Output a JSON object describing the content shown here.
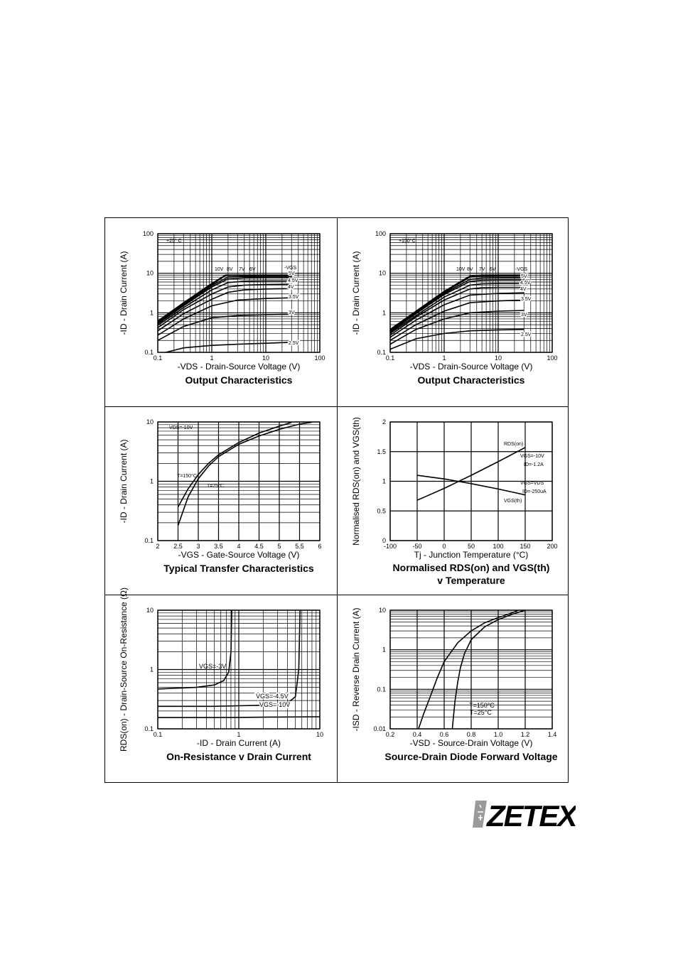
{
  "charts": [
    {
      "type": "line",
      "title": "Output Characteristics",
      "xlabel": "-VDS - Drain-Source Voltage (V)",
      "ylabel": "-ID - Drain Current (A)",
      "xscale": "log",
      "yscale": "log",
      "xlim": [
        0.1,
        100
      ],
      "ylim": [
        0.1,
        100
      ],
      "xticks": [
        "0.1",
        "1",
        "10",
        "100"
      ],
      "yticks": [
        "0.1",
        "1",
        "10",
        "100"
      ],
      "annotations": [
        "+25° C",
        "10V",
        "8V",
        "7V",
        "6V",
        "-VGS",
        "5V",
        "4.5V",
        "4V",
        "3.5V",
        "3V",
        "2.5V"
      ],
      "series": [
        {
          "name": "10V",
          "x": [
            0.1,
            0.3,
            1,
            1.8,
            3,
            10,
            30
          ],
          "y": [
            0.62,
            1.8,
            5.5,
            9.0,
            9.0,
            9.0,
            9.0
          ]
        },
        {
          "name": "8V",
          "x": [
            0.1,
            0.3,
            1,
            1.8,
            3,
            10,
            30
          ],
          "y": [
            0.58,
            1.7,
            5.2,
            8.7,
            8.8,
            8.8,
            8.8
          ]
        },
        {
          "name": "7V",
          "x": [
            0.1,
            0.3,
            1,
            2,
            4,
            10,
            30
          ],
          "y": [
            0.55,
            1.6,
            4.9,
            8.0,
            8.3,
            8.4,
            8.4
          ]
        },
        {
          "name": "6V",
          "x": [
            0.1,
            0.3,
            1,
            2,
            4,
            10,
            30
          ],
          "y": [
            0.52,
            1.5,
            4.5,
            7.2,
            7.6,
            7.7,
            7.7
          ]
        },
        {
          "name": "5V",
          "x": [
            0.1,
            0.3,
            1,
            2,
            4,
            10,
            30
          ],
          "y": [
            0.48,
            1.35,
            3.8,
            5.8,
            6.3,
            6.4,
            6.4
          ]
        },
        {
          "name": "4.5V",
          "x": [
            0.1,
            0.3,
            1,
            2,
            4,
            10,
            30
          ],
          "y": [
            0.42,
            1.2,
            3.0,
            4.5,
            5.0,
            5.2,
            5.3
          ]
        },
        {
          "name": "4V",
          "x": [
            0.1,
            0.3,
            1,
            2,
            4,
            10,
            30
          ],
          "y": [
            0.35,
            0.95,
            2.2,
            3.3,
            3.8,
            4.0,
            4.1
          ]
        },
        {
          "name": "3.5V",
          "x": [
            0.1,
            0.3,
            1,
            3,
            10,
            30
          ],
          "y": [
            0.27,
            0.7,
            1.5,
            2.1,
            2.3,
            2.4
          ]
        },
        {
          "name": "3V",
          "x": [
            0.1,
            0.3,
            1,
            3,
            10,
            30
          ],
          "y": [
            0.2,
            0.45,
            0.75,
            0.85,
            0.9,
            0.92
          ]
        },
        {
          "name": "2.5V",
          "x": [
            0.14,
            0.3,
            1,
            3,
            10,
            30
          ],
          "y": [
            0.1,
            0.13,
            0.15,
            0.16,
            0.17,
            0.18
          ]
        }
      ]
    },
    {
      "type": "line",
      "title": "Output Characteristics",
      "xlabel": "-VDS - Drain-Source Voltage (V)",
      "ylabel": "-ID - Drain Current (A)",
      "xscale": "log",
      "yscale": "log",
      "xlim": [
        0.1,
        100
      ],
      "ylim": [
        0.1,
        100
      ],
      "xticks": [
        "0.1",
        "1",
        "10",
        "100"
      ],
      "yticks": [
        "0.1",
        "1",
        "10",
        "100"
      ],
      "annotations": [
        "+150°C",
        "10V",
        "8V",
        "7V",
        "6V",
        "-VGS",
        "5V",
        "4.5V",
        "4V",
        "3.5V",
        "3V",
        "2.5V"
      ],
      "series": [
        {
          "name": "10V",
          "x": [
            0.1,
            0.3,
            1,
            3,
            5,
            10,
            30
          ],
          "y": [
            0.38,
            1.1,
            3.5,
            8.5,
            9.0,
            9.0,
            9.0
          ]
        },
        {
          "name": "8V",
          "x": [
            0.1,
            0.3,
            1,
            3,
            5,
            10,
            30
          ],
          "y": [
            0.36,
            1.05,
            3.3,
            8.0,
            8.4,
            8.5,
            8.5
          ]
        },
        {
          "name": "7V",
          "x": [
            0.1,
            0.3,
            1,
            3,
            5,
            10,
            30
          ],
          "y": [
            0.34,
            1.0,
            3.1,
            7.0,
            7.5,
            7.6,
            7.6
          ]
        },
        {
          "name": "6V",
          "x": [
            0.1,
            0.3,
            1,
            3,
            5,
            10,
            30
          ],
          "y": [
            0.32,
            0.95,
            2.9,
            6.2,
            6.6,
            6.7,
            6.7
          ]
        },
        {
          "name": "5V",
          "x": [
            0.1,
            0.3,
            1,
            3,
            5,
            10,
            30
          ],
          "y": [
            0.3,
            0.85,
            2.5,
            5.0,
            5.4,
            5.5,
            5.5
          ]
        },
        {
          "name": "4.5V",
          "x": [
            0.1,
            0.3,
            1,
            3,
            5,
            10,
            30
          ],
          "y": [
            0.27,
            0.78,
            2.1,
            4.0,
            4.3,
            4.4,
            4.4
          ]
        },
        {
          "name": "4V",
          "x": [
            0.1,
            0.3,
            1,
            3,
            10,
            30
          ],
          "y": [
            0.24,
            0.65,
            1.6,
            2.8,
            3.1,
            3.2
          ]
        },
        {
          "name": "3.5V",
          "x": [
            0.1,
            0.3,
            1,
            3,
            10,
            30
          ],
          "y": [
            0.2,
            0.5,
            1.1,
            1.8,
            2.0,
            2.1
          ]
        },
        {
          "name": "3V",
          "x": [
            0.1,
            0.3,
            1,
            3,
            10,
            30
          ],
          "y": [
            0.16,
            0.38,
            0.7,
            1.0,
            1.1,
            1.15
          ]
        },
        {
          "name": "2.5V",
          "x": [
            0.1,
            0.3,
            1,
            3,
            10,
            30
          ],
          "y": [
            0.12,
            0.22,
            0.3,
            0.35,
            0.37,
            0.38
          ]
        }
      ]
    },
    {
      "type": "line",
      "title": "Typical Transfer Characteristics",
      "xlabel": "-VGS - Gate-Source Voltage (V)",
      "ylabel": "-ID - Drain Current (A)",
      "xscale": "linear",
      "yscale": "log",
      "xlim": [
        2,
        6
      ],
      "ylim": [
        0.1,
        10
      ],
      "xticks": [
        "2",
        "2.5",
        "3",
        "3.5",
        "4",
        "4.5",
        "5",
        "5.5",
        "6"
      ],
      "yticks": [
        "0.1",
        "1",
        "10"
      ],
      "annotations": [
        "VDS=-10V",
        "T=150°C",
        "T=25°C"
      ],
      "series": [
        {
          "name": "T=150°C",
          "x": [
            2.5,
            2.75,
            3.0,
            3.25,
            3.5,
            4.0,
            4.5,
            5.0,
            5.3
          ],
          "y": [
            0.37,
            0.75,
            1.3,
            2.0,
            2.8,
            4.5,
            6.5,
            8.5,
            9.8
          ]
        },
        {
          "name": "T=25°C",
          "x": [
            2.5,
            2.75,
            3.0,
            3.25,
            3.5,
            4.0,
            4.5,
            5.0,
            5.5,
            5.8
          ],
          "y": [
            0.18,
            0.55,
            1.1,
            1.8,
            2.6,
            4.2,
            5.8,
            7.5,
            9.2,
            9.9
          ]
        }
      ]
    },
    {
      "type": "line",
      "title": "Normalised RDS(on) and VGS(th)",
      "subtitle": "v Temperature",
      "xlabel": "Tj - Junction Temperature (°C)",
      "ylabel": "Normalised RDS(on) and VGS(th)",
      "xscale": "linear",
      "yscale": "linear",
      "xlim": [
        -100,
        200
      ],
      "ylim": [
        0,
        2
      ],
      "xticks": [
        "-100",
        "-50",
        "0",
        "50",
        "100",
        "150",
        "200"
      ],
      "yticks": [
        "0",
        "0.5",
        "1",
        "1.5",
        "2"
      ],
      "annotations": [
        "RDS(on)",
        "VGS=-10V",
        "ID=-1.2A",
        "VGS=VDS",
        "ID=-250uA",
        "VGS(th)"
      ],
      "series": [
        {
          "name": "RDS(on)",
          "x": [
            -50,
            0,
            25,
            50,
            100,
            150
          ],
          "y": [
            0.68,
            0.88,
            0.99,
            1.1,
            1.33,
            1.57
          ]
        },
        {
          "name": "VGS(th)",
          "x": [
            -50,
            0,
            25,
            50,
            100,
            150
          ],
          "y": [
            1.1,
            1.04,
            1.0,
            0.96,
            0.87,
            0.77
          ]
        }
      ]
    },
    {
      "type": "line",
      "title": "On-Resistance v Drain Current",
      "xlabel": "-ID - Drain Current (A)",
      "ylabel": "RDS(on) - Drain-Source On-Resistance (Ω)",
      "xscale": "log",
      "yscale": "log",
      "xlim": [
        0.1,
        10
      ],
      "ylim": [
        0.1,
        10
      ],
      "xticks": [
        "0.1",
        "1",
        "10"
      ],
      "yticks": [
        "0.1",
        "1",
        "10"
      ],
      "annotations": [
        "VGS=-3V",
        "VGS=-4.5V",
        "VGS=-10V"
      ],
      "series": [
        {
          "name": "VGS=-3V",
          "x": [
            0.1,
            0.3,
            0.5,
            0.65,
            0.75,
            0.8,
            0.82
          ],
          "y": [
            0.47,
            0.5,
            0.55,
            0.65,
            0.9,
            2.0,
            10
          ]
        },
        {
          "name": "VGS=-4.5V",
          "x": [
            0.1,
            0.5,
            1,
            2,
            4,
            5,
            5.5,
            5.7
          ],
          "y": [
            0.24,
            0.24,
            0.245,
            0.25,
            0.27,
            0.35,
            1.0,
            10
          ]
        },
        {
          "name": "VGS=-10V",
          "x": [
            0.1,
            0.5,
            1,
            3,
            10
          ],
          "y": [
            0.155,
            0.155,
            0.156,
            0.158,
            0.16
          ]
        }
      ]
    },
    {
      "type": "line",
      "title": "Source-Drain Diode Forward Voltage",
      "xlabel": "-VSD - Source-Drain Voltage (V)",
      "ylabel": "-ISD - Reverse Drain Current (A)",
      "xscale": "linear",
      "yscale": "log",
      "xlim": [
        0.2,
        1.4
      ],
      "ylim": [
        0.01,
        10
      ],
      "xticks": [
        "0.2",
        "0.4",
        "0.6",
        "0.8",
        "1.0",
        "1.2",
        "1.4"
      ],
      "yticks": [
        "0.01",
        "0.1",
        "1",
        "10"
      ],
      "annotations": [
        "T=150°C",
        "T=25°C"
      ],
      "series": [
        {
          "name": "T=150°C",
          "x": [
            0.41,
            0.45,
            0.5,
            0.55,
            0.6,
            0.7,
            0.8,
            0.9,
            1.0,
            1.1,
            1.15
          ],
          "y": [
            0.01,
            0.025,
            0.07,
            0.2,
            0.5,
            1.5,
            3.0,
            4.8,
            6.5,
            8.5,
            10
          ]
        },
        {
          "name": "T=25°C",
          "x": [
            0.66,
            0.68,
            0.7,
            0.72,
            0.75,
            0.8,
            0.9,
            1.0,
            1.1,
            1.2
          ],
          "y": [
            0.01,
            0.05,
            0.15,
            0.35,
            0.8,
            1.8,
            3.8,
            5.8,
            7.8,
            10
          ]
        }
      ]
    }
  ],
  "logo": {
    "text": "ZETEX"
  }
}
